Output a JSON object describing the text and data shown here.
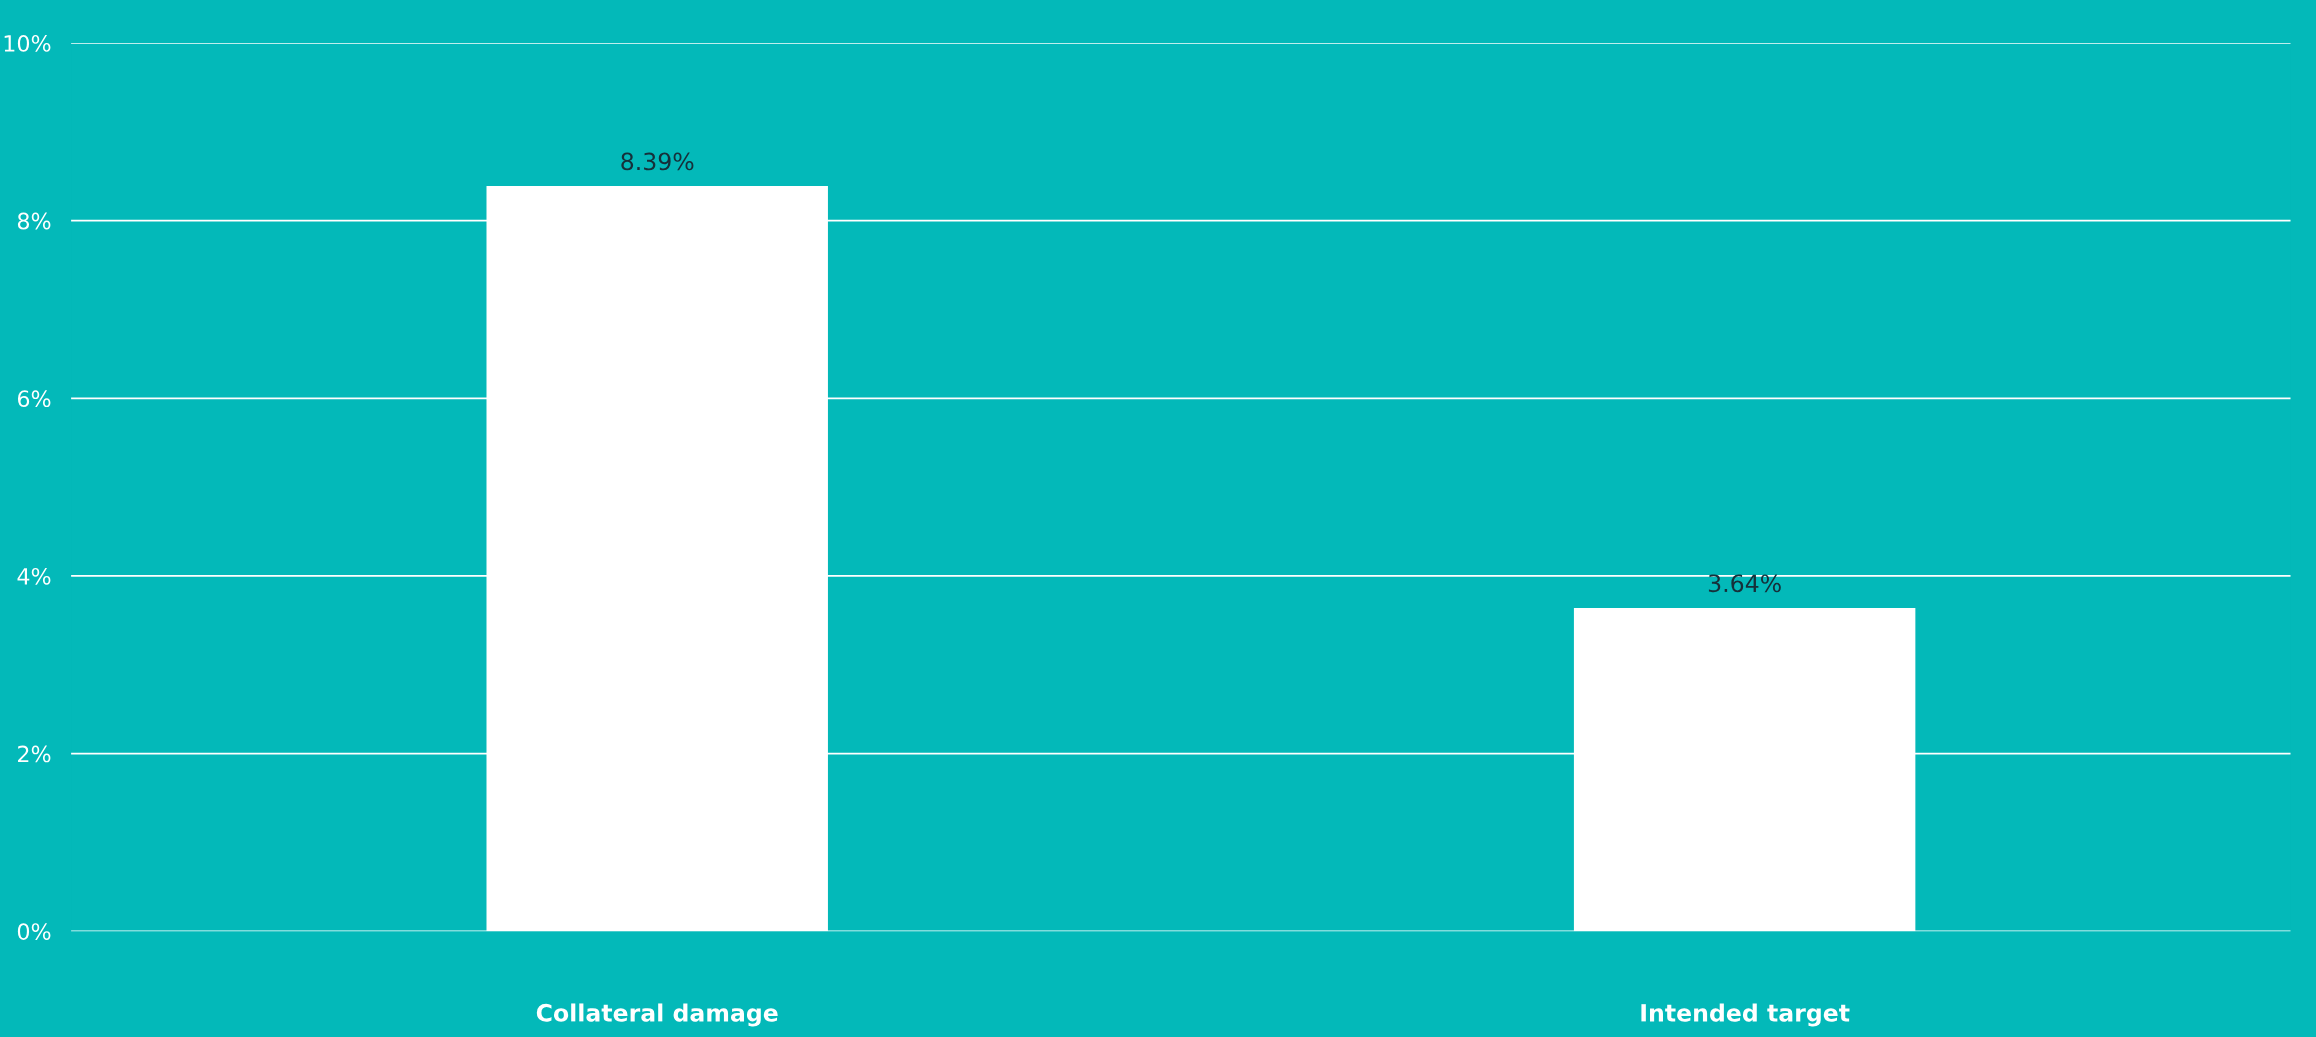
{
  "chart_data": {
    "type": "bar",
    "categories": [
      "Collateral damage",
      "Intended target"
    ],
    "values": [
      8.39,
      3.64
    ],
    "color": "#ffffff",
    "ylim": [
      0,
      10
    ],
    "yticks": [
      {
        "value": 0,
        "label": "0%"
      },
      {
        "value": 2,
        "label": "2%"
      },
      {
        "value": 4,
        "label": "4%"
      },
      {
        "value": 6,
        "label": "6%"
      },
      {
        "value": 8,
        "label": "8%"
      },
      {
        "value": 10,
        "label": "10%"
      }
    ],
    "value_labels": [
      "8.39%",
      "3.64%"
    ],
    "grid": "y"
  }
}
